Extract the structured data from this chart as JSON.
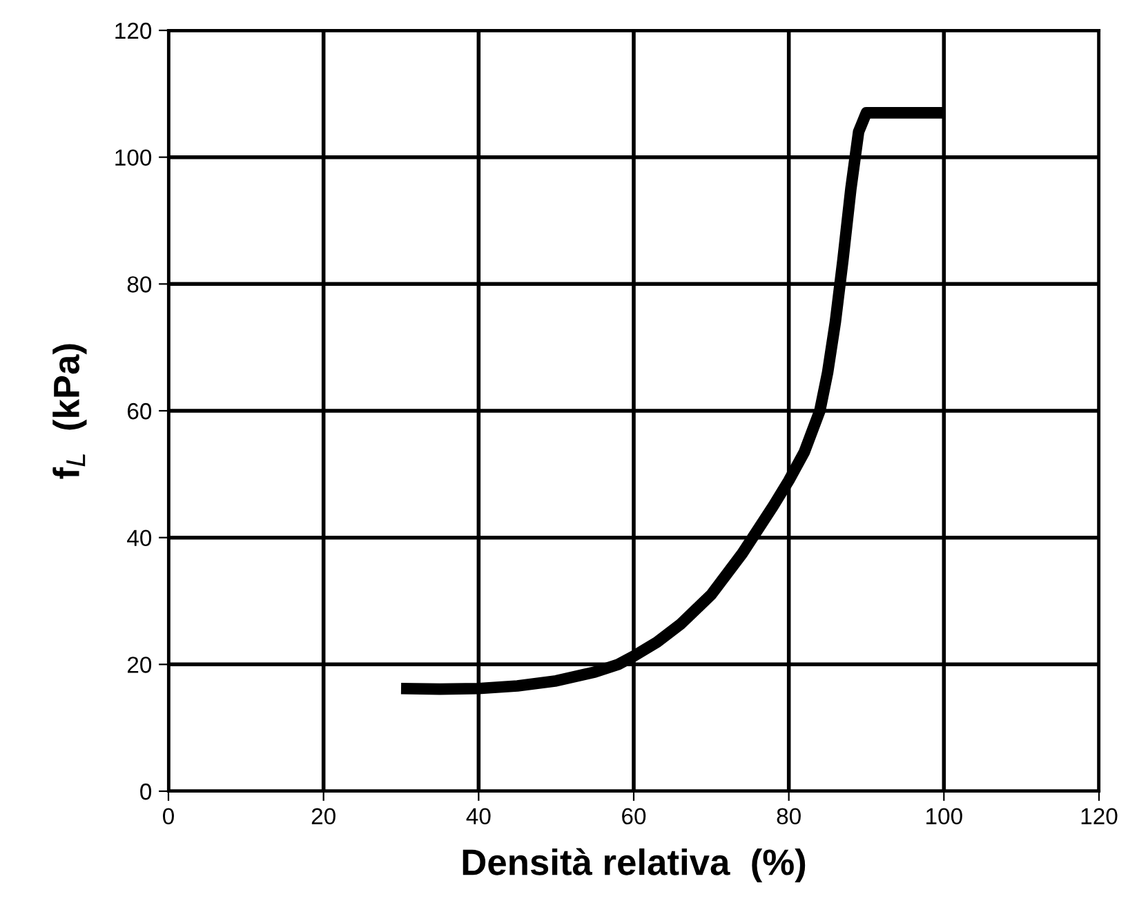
{
  "chart_data": {
    "type": "line",
    "xlabel": "Densità relativa  (%)",
    "ylabel": "f$_{L}$  (kPa)",
    "x": [
      30,
      35,
      40,
      45,
      50,
      55,
      58,
      60,
      63,
      66,
      70,
      74,
      78,
      80,
      82,
      84,
      85,
      86,
      87,
      88,
      89,
      90,
      95,
      100
    ],
    "series": [
      {
        "color": "#000000",
        "values": [
          16.2,
          16.1,
          16.2,
          16.6,
          17.4,
          18.8,
          20.0,
          21.3,
          23.5,
          26.3,
          31.0,
          37.5,
          45.0,
          49.0,
          53.5,
          60.0,
          66.0,
          74.0,
          84.0,
          95.0,
          104.0,
          107,
          107,
          107
        ]
      }
    ],
    "xlim": [
      0,
      120
    ],
    "xticks": [
      0,
      20,
      40,
      60,
      80,
      100,
      120
    ],
    "ylim": [
      0,
      120
    ],
    "yticks": [
      0,
      20,
      40,
      60,
      80,
      100,
      120
    ],
    "grid": true,
    "marker": "none",
    "line_style": "solid"
  }
}
